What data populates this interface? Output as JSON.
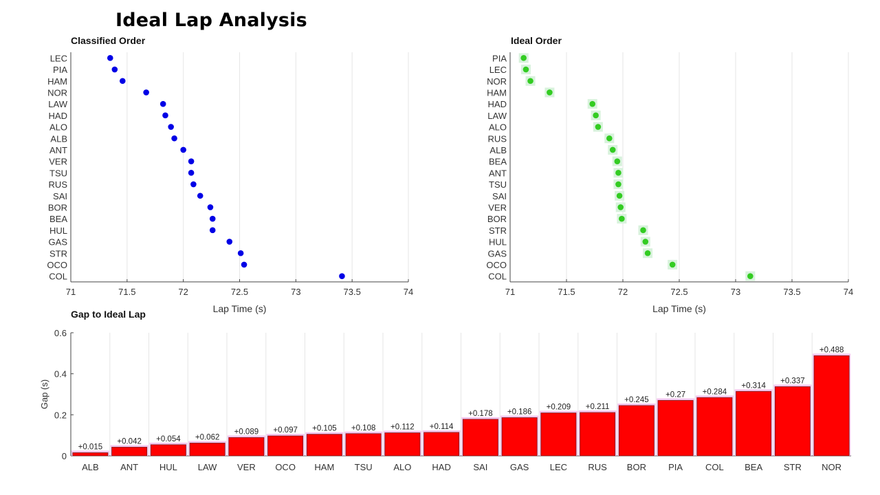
{
  "page": {
    "title": "Ideal Lap Analysis"
  },
  "chart_data": [
    {
      "type": "scatter",
      "title": "Classified Order",
      "xlabel": "Lap Time (s)",
      "ylabel": "",
      "xlim": [
        71,
        74
      ],
      "xticks": [
        "71",
        "71.5",
        "72",
        "72.5",
        "73",
        "73.5",
        "74"
      ],
      "grid": "vertical",
      "color": "#0000e6",
      "categories": [
        "LEC",
        "PIA",
        "HAM",
        "NOR",
        "LAW",
        "HAD",
        "ALO",
        "ALB",
        "ANT",
        "VER",
        "TSU",
        "RUS",
        "SAI",
        "BOR",
        "BEA",
        "HUL",
        "GAS",
        "STR",
        "OCO",
        "COL"
      ],
      "values": [
        71.35,
        71.39,
        71.46,
        71.67,
        71.82,
        71.84,
        71.89,
        71.92,
        72.0,
        72.07,
        72.07,
        72.09,
        72.15,
        72.24,
        72.26,
        72.26,
        72.41,
        72.51,
        72.54,
        73.41
      ]
    },
    {
      "type": "scatter",
      "title": "Ideal Order",
      "xlabel": "Lap Time (s)",
      "ylabel": "",
      "xlim": [
        71,
        74
      ],
      "xticks": [
        "71",
        "71.5",
        "72",
        "72.5",
        "73",
        "73.5",
        "74"
      ],
      "grid": "vertical",
      "color": "#33cc22",
      "categories": [
        "PIA",
        "LEC",
        "NOR",
        "HAM",
        "HAD",
        "LAW",
        "ALO",
        "RUS",
        "ALB",
        "BEA",
        "ANT",
        "TSU",
        "SAI",
        "VER",
        "BOR",
        "STR",
        "HUL",
        "GAS",
        "OCO",
        "COL"
      ],
      "values": [
        71.12,
        71.14,
        71.18,
        71.35,
        71.73,
        71.76,
        71.78,
        71.88,
        71.91,
        71.95,
        71.96,
        71.96,
        71.97,
        71.98,
        71.99,
        72.18,
        72.2,
        72.22,
        72.44,
        73.13
      ]
    },
    {
      "type": "bar",
      "title": "Gap to Ideal Lap",
      "xlabel": "",
      "ylabel": "Gap (s)",
      "ylim": [
        0,
        0.6
      ],
      "yticks": [
        "0",
        "0.2",
        "0.4",
        "0.6"
      ],
      "grid": "vertical",
      "color": "#ff0000",
      "categories": [
        "ALB",
        "ANT",
        "HUL",
        "LAW",
        "VER",
        "OCO",
        "HAM",
        "TSU",
        "ALO",
        "HAD",
        "SAI",
        "GAS",
        "LEC",
        "RUS",
        "BOR",
        "PIA",
        "COL",
        "BEA",
        "STR",
        "NOR"
      ],
      "values": [
        0.015,
        0.042,
        0.054,
        0.062,
        0.089,
        0.097,
        0.105,
        0.108,
        0.112,
        0.114,
        0.178,
        0.186,
        0.209,
        0.211,
        0.245,
        0.27,
        0.284,
        0.314,
        0.337,
        0.488
      ],
      "data_labels": [
        "+0.015",
        "+0.042",
        "+0.054",
        "+0.062",
        "+0.089",
        "+0.097",
        "+0.105",
        "+0.108",
        "+0.112",
        "+0.114",
        "+0.178",
        "+0.186",
        "+0.209",
        "+0.211",
        "+0.245",
        "+0.27",
        "+0.284",
        "+0.314",
        "+0.337",
        "+0.488"
      ]
    }
  ]
}
